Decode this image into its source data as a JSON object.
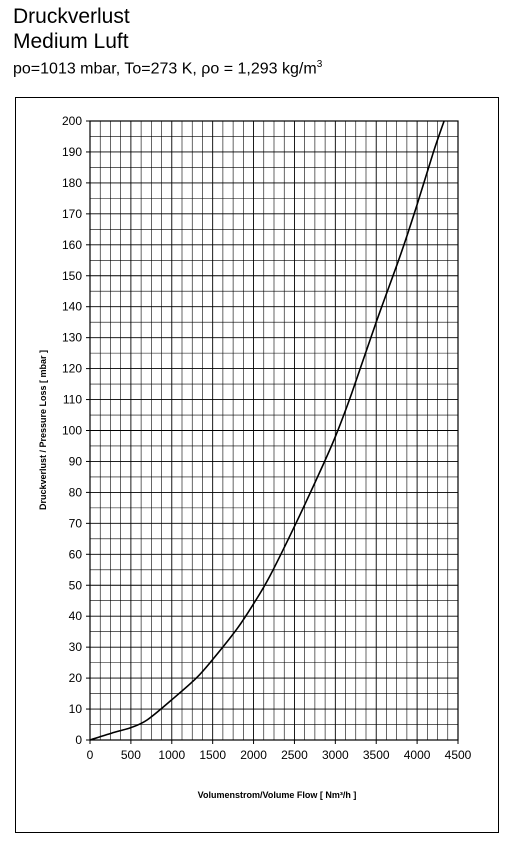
{
  "header": {
    "title_line1": "Druckverlust",
    "title_line2": "Medium Luft",
    "subtitle_prefix": "po=1013 mbar, To=273 K, ρo = 1,293 kg/m",
    "subtitle_sup": "3"
  },
  "chart_data": {
    "type": "line",
    "title": "Druckverlust Medium Luft",
    "xlabel": "Volumenstrom/Volume Flow [ Nm³/h ]",
    "ylabel": "Druckverlust / Pressure Loss [ mbar ]",
    "xlim": [
      0,
      4500
    ],
    "ylim": [
      0,
      200
    ],
    "x_major_ticks": [
      0,
      500,
      1000,
      1500,
      2000,
      2500,
      3000,
      3500,
      4000,
      4500
    ],
    "y_major_ticks": [
      0,
      10,
      20,
      30,
      40,
      50,
      60,
      70,
      80,
      90,
      100,
      110,
      120,
      130,
      140,
      150,
      160,
      170,
      180,
      190,
      200
    ],
    "x_minor_step": 125,
    "y_minor_step": 5,
    "grid": true,
    "legend": false,
    "series": [
      {
        "color": "#000000",
        "x": [
          0,
          300,
          500,
          700,
          1000,
          1300,
          1500,
          1800,
          2000,
          2200,
          2500,
          2800,
          3000,
          3200,
          3500,
          3800,
          4000,
          4200,
          4330
        ],
        "y": [
          0,
          2.5,
          4,
          6.5,
          13,
          20,
          26,
          36,
          44,
          53,
          69,
          86,
          98,
          112,
          135,
          157,
          173,
          190,
          200
        ]
      }
    ]
  }
}
